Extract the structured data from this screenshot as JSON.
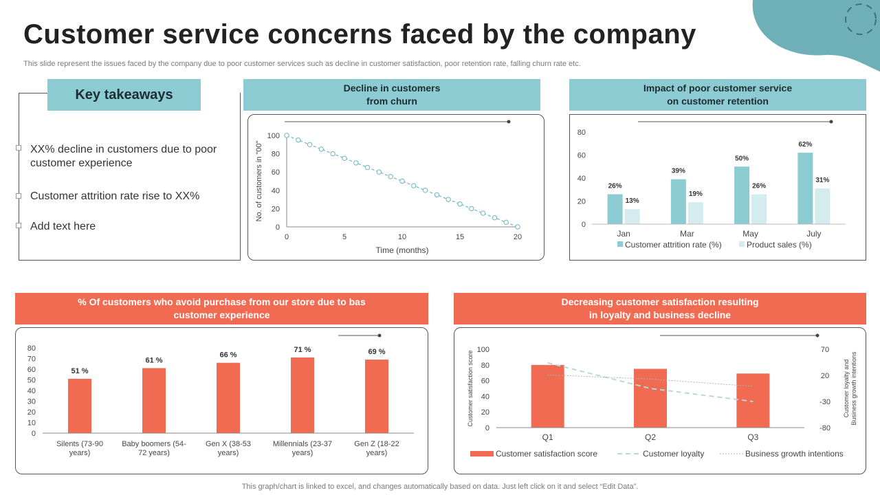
{
  "title": "Customer service concerns faced by the company",
  "subtitle": "This slide represent the issues faced by the company due to poor customer services such as decline in customer satisfaction, poor retention rate, falling churn rate etc.",
  "colors": {
    "teal": "#8ccbd2",
    "teal_dark": "#6ab7c1",
    "teal_light": "#d4ecee",
    "coral": "#f06b51",
    "blob": "#6fb0b8"
  },
  "key_takeaways": {
    "heading": "Key takeaways",
    "items": [
      "XX% decline in customers due to poor customer experience",
      "Customer attrition rate rise to XX%",
      "Add text here"
    ]
  },
  "footer": "This graph/chart is linked to excel,  and changes automatically based on data. Just left click on it and select “Edit Data”.",
  "chart_data": [
    {
      "id": "churn",
      "type": "scatter",
      "title": "Decline in customers from churn",
      "title_lines": [
        "Decline in customers",
        "from churn"
      ],
      "xlabel": "Time (months)",
      "ylabel": "No. of customers in \"00\"",
      "xlim": [
        0,
        20
      ],
      "ylim": [
        0,
        100
      ],
      "xticks": [
        "0",
        "5",
        "10",
        "15",
        "20"
      ],
      "yticks": [
        "0",
        "20",
        "40",
        "60",
        "80",
        "100"
      ],
      "x": [
        0,
        1,
        2,
        3,
        4,
        5,
        6,
        7,
        8,
        9,
        10,
        11,
        12,
        13,
        14,
        15,
        16,
        17,
        18,
        19,
        20
      ],
      "y": [
        100,
        95,
        90,
        85,
        80,
        75,
        70,
        65,
        60,
        55,
        50,
        45,
        40,
        35,
        30,
        25,
        20,
        15,
        10,
        5,
        0
      ]
    },
    {
      "id": "retention",
      "type": "bar",
      "title": "Impact of poor customer service on customer retention",
      "title_lines": [
        "Impact of poor customer service",
        "on customer retention"
      ],
      "categories": [
        "Jan",
        "Mar",
        "May",
        "July"
      ],
      "ylim": [
        0,
        80
      ],
      "yticks": [
        "0",
        "20",
        "40",
        "60",
        "80"
      ],
      "series": [
        {
          "name": "Customer attrition rate (%)",
          "values": [
            26,
            39,
            50,
            62
          ],
          "labels": [
            "26%",
            "39%",
            "50%",
            "62%"
          ]
        },
        {
          "name": "Product sales (%)",
          "values": [
            13,
            19,
            26,
            31
          ],
          "labels": [
            "13%",
            "19%",
            "26%",
            "31%"
          ]
        }
      ]
    },
    {
      "id": "avoid",
      "type": "bar",
      "title": "% Of customers who avoid purchase from our store due to bas customer experience",
      "title_lines": [
        "% Of customers who avoid purchase from our store due to bas",
        "customer experience"
      ],
      "categories": [
        "Silents (73-90 years)",
        "Baby boomers (54-72 years)",
        "Gen X (38-53 years)",
        "Millennials (23-37 years)",
        "Gen Z (18-22 years)"
      ],
      "category_lines": [
        [
          "Silents (73-90",
          "years)"
        ],
        [
          "Baby boomers (54-",
          "72 years)"
        ],
        [
          "Gen X (38-53",
          "years)"
        ],
        [
          "Millennials (23-37",
          "years)"
        ],
        [
          "Gen Z (18-22",
          "years)"
        ]
      ],
      "ylim": [
        0,
        80
      ],
      "yticks": [
        "0",
        "10",
        "20",
        "30",
        "40",
        "50",
        "60",
        "70",
        "80"
      ],
      "values": [
        51,
        61,
        66,
        71,
        69
      ],
      "labels": [
        "51 %",
        "61 %",
        "66 %",
        "71 %",
        "69 %"
      ]
    },
    {
      "id": "satisfaction",
      "type": "bar",
      "title": "Decreasing customer satisfaction resulting in loyalty and business decline",
      "title_lines": [
        "Decreasing customer satisfaction resulting",
        "in loyalty and business decline"
      ],
      "categories": [
        "Q1",
        "Q2",
        "Q3"
      ],
      "ylabel": "Customer satisfaction score",
      "y2label": "Customer loyalty and Business growth intentions",
      "y2label_lines": [
        "Customer loyalty and",
        "Business growth intentions"
      ],
      "ylim": [
        0,
        100
      ],
      "yticks": [
        "0",
        "20",
        "40",
        "60",
        "80",
        "100"
      ],
      "y2lim": [
        -80,
        70
      ],
      "y2ticks": [
        "-80",
        "-30",
        "20",
        "70"
      ],
      "series": [
        {
          "name": "Customer satisfaction score",
          "type": "bar",
          "axis": "left",
          "values": [
            80,
            75,
            69
          ]
        },
        {
          "name": "Customer loyalty",
          "type": "line",
          "axis": "right",
          "values": [
            44,
            -5,
            -30
          ]
        },
        {
          "name": "Business growth intentions",
          "type": "line",
          "axis": "right",
          "values": [
            21,
            13,
            -1
          ]
        }
      ]
    }
  ]
}
